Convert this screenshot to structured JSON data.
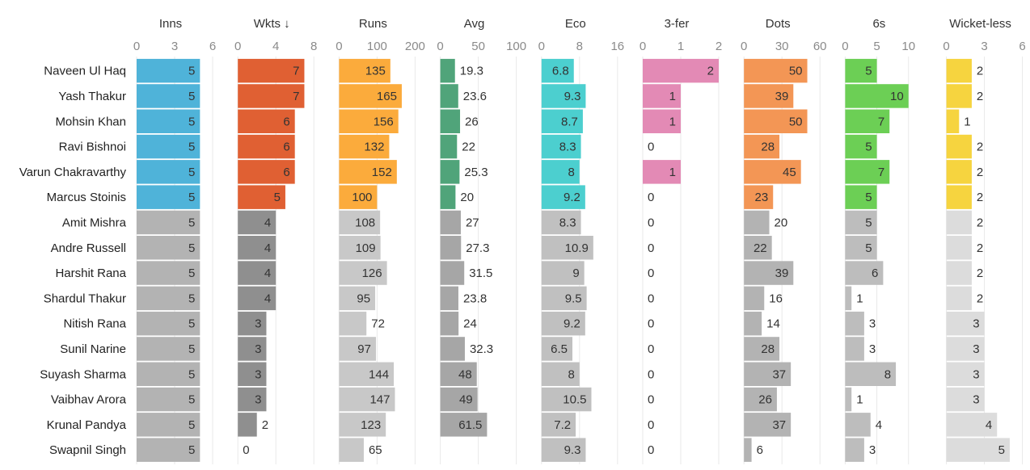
{
  "chart_data": {
    "type": "bar",
    "title": "",
    "sorted_by": "Wkts",
    "sort_indicator": "↓",
    "highlight_count": 6,
    "players": [
      "Naveen Ul Haq",
      "Yash Thakur",
      "Mohsin Khan",
      "Ravi Bishnoi",
      "Varun Chakravarthy",
      "Marcus Stoinis",
      "Amit Mishra",
      "Andre Russell",
      "Harshit Rana",
      "Shardul Thakur",
      "Nitish Rana",
      "Sunil Narine",
      "Suyash Sharma",
      "Vaibhav Arora",
      "Krunal Pandya",
      "Swapnil Singh"
    ],
    "series": [
      {
        "name": "Inns",
        "title": "Inns",
        "color": "#4fb3d9",
        "grey": "#b3b3b3",
        "domain": [
          0,
          6
        ],
        "ticks": [
          "0",
          "3",
          "6"
        ],
        "values": [
          5,
          5,
          5,
          5,
          5,
          5,
          5,
          5,
          5,
          5,
          5,
          5,
          5,
          5,
          5,
          5
        ],
        "labels": [
          "5",
          "5",
          "5",
          "5",
          "5",
          "5",
          "5",
          "5",
          "5",
          "5",
          "5",
          "5",
          "5",
          "5",
          "5",
          "5"
        ]
      },
      {
        "name": "Wkts",
        "title": "Wkts ↓",
        "color": "#e06033",
        "grey": "#8f8f8f",
        "domain": [
          0,
          8
        ],
        "ticks": [
          "0",
          "4",
          "8"
        ],
        "values": [
          7,
          7,
          6,
          6,
          6,
          5,
          4,
          4,
          4,
          4,
          3,
          3,
          3,
          3,
          2,
          0
        ],
        "labels": [
          "7",
          "7",
          "6",
          "6",
          "6",
          "5",
          "4",
          "4",
          "4",
          "4",
          "3",
          "3",
          "3",
          "3",
          "2",
          "0"
        ]
      },
      {
        "name": "Runs",
        "title": "Runs",
        "color": "#fbab3c",
        "grey": "#c8c8c8",
        "domain": [
          0,
          200
        ],
        "ticks": [
          "0",
          "100",
          "200"
        ],
        "values": [
          135,
          165,
          156,
          132,
          152,
          100,
          108,
          109,
          126,
          95,
          72,
          97,
          144,
          147,
          123,
          65
        ],
        "labels": [
          "135",
          "165",
          "156",
          "132",
          "152",
          "100",
          "108",
          "109",
          "126",
          "95",
          "72",
          "97",
          "144",
          "147",
          "123",
          "65"
        ]
      },
      {
        "name": "Avg",
        "title": "Avg",
        "color": "#50a47a",
        "grey": "#a6a6a6",
        "domain": [
          0,
          100
        ],
        "ticks": [
          "0",
          "50",
          "100"
        ],
        "values": [
          19.3,
          23.6,
          26,
          22,
          25.3,
          20,
          27,
          27.3,
          31.5,
          23.8,
          24,
          32.3,
          48,
          49,
          61.5,
          null
        ],
        "labels": [
          "19.3",
          "23.6",
          "26",
          "22",
          "25.3",
          "20",
          "27",
          "27.3",
          "31.5",
          "23.8",
          "24",
          "32.3",
          "48",
          "49",
          "61.5",
          ""
        ]
      },
      {
        "name": "Eco",
        "title": "Eco",
        "color": "#4ccfcf",
        "grey": "#c0c0c0",
        "domain": [
          0,
          16
        ],
        "ticks": [
          "0",
          "8",
          "16"
        ],
        "values": [
          6.8,
          9.3,
          8.7,
          8.3,
          8,
          9.2,
          8.3,
          10.9,
          9,
          9.5,
          9.2,
          6.5,
          8,
          10.5,
          7.2,
          9.3
        ],
        "labels": [
          "6.8",
          "9.3",
          "8.7",
          "8.3",
          "8",
          "9.2",
          "8.3",
          "10.9",
          "9",
          "9.5",
          "9.2",
          "6.5",
          "8",
          "10.5",
          "7.2",
          "9.3"
        ]
      },
      {
        "name": "3-fer",
        "title": "3-fer",
        "color": "#e38ab5",
        "grey": "#c0c0c0",
        "domain": [
          0,
          2
        ],
        "ticks": [
          "0",
          "1",
          "2"
        ],
        "values": [
          2,
          1,
          1,
          0,
          1,
          0,
          0,
          0,
          0,
          0,
          0,
          0,
          0,
          0,
          0,
          0
        ],
        "labels": [
          "2",
          "1",
          "1",
          "0",
          "1",
          "0",
          "0",
          "0",
          "0",
          "0",
          "0",
          "0",
          "0",
          "0",
          "0",
          "0"
        ]
      },
      {
        "name": "Dots",
        "title": "Dots",
        "color": "#f39655",
        "grey": "#b3b3b3",
        "domain": [
          0,
          60
        ],
        "ticks": [
          "0",
          "30",
          "60"
        ],
        "values": [
          50,
          39,
          50,
          28,
          45,
          23,
          20,
          22,
          39,
          16,
          14,
          28,
          37,
          26,
          37,
          6
        ],
        "labels": [
          "50",
          "39",
          "50",
          "28",
          "45",
          "23",
          "20",
          "22",
          "39",
          "16",
          "14",
          "28",
          "37",
          "26",
          "37",
          "6"
        ]
      },
      {
        "name": "6s",
        "title": "6s",
        "color": "#6ccf55",
        "grey": "#bdbdbd",
        "domain": [
          0,
          12
        ],
        "ticks": [
          "0",
          "5",
          "10"
        ],
        "values": [
          5,
          10,
          7,
          5,
          7,
          5,
          5,
          5,
          6,
          1,
          3,
          3,
          8,
          1,
          4,
          3
        ],
        "labels": [
          "5",
          "10",
          "7",
          "5",
          "7",
          "5",
          "5",
          "5",
          "6",
          "1",
          "3",
          "3",
          "8",
          "1",
          "4",
          "3"
        ]
      },
      {
        "name": "Wicket-less",
        "title": "Wicket-less",
        "color": "#f6d43f",
        "grey": "#dcdcdc",
        "domain": [
          0,
          6
        ],
        "ticks": [
          "0",
          "3",
          "6"
        ],
        "values": [
          2,
          2,
          1,
          2,
          2,
          2,
          2,
          2,
          2,
          2,
          3,
          3,
          3,
          3,
          4,
          5
        ],
        "labels": [
          "2",
          "2",
          "1",
          "2",
          "2",
          "2",
          "2",
          "2",
          "2",
          "2",
          "3",
          "3",
          "3",
          "3",
          "4",
          "5"
        ]
      }
    ]
  }
}
